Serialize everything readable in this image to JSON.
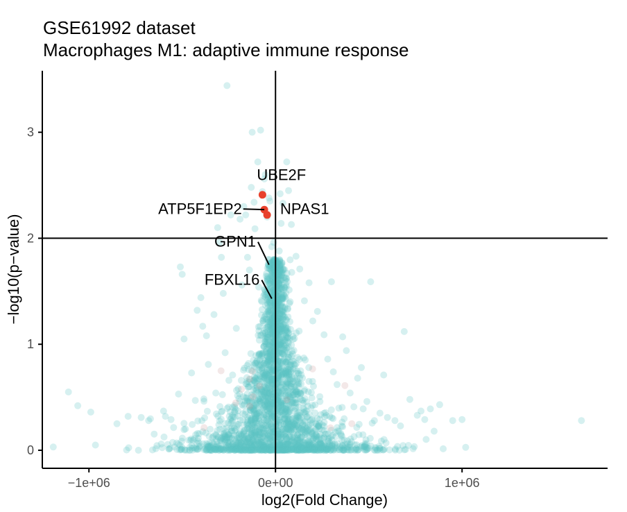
{
  "chart_data": {
    "type": "scatter",
    "title": "GSE61992 dataset",
    "subtitle": "Macrophages M1: adaptive immune response",
    "xlabel": "log2(Fold Change)",
    "ylabel": "−log10(p−value)",
    "xlim": [
      -1250000,
      1780000
    ],
    "ylim": [
      -0.17,
      3.58
    ],
    "x_ticks": [
      {
        "value": -1000000,
        "label": "−1e+06"
      },
      {
        "value": 0,
        "label": "0e+00"
      },
      {
        "value": 1000000,
        "label": "1e+06"
      }
    ],
    "y_ticks": [
      {
        "value": 0,
        "label": "0"
      },
      {
        "value": 1,
        "label": "1"
      },
      {
        "value": 2,
        "label": "2"
      },
      {
        "value": 3,
        "label": "3"
      }
    ],
    "threshold_x": 0,
    "threshold_y": 2,
    "grid": false,
    "legend": "none",
    "colors": {
      "background_points": "#5bc4c4",
      "significant_points": "#e8412c",
      "axis": "#000000"
    },
    "sparse_points": [
      [
        -1110000,
        0.55
      ],
      [
        -1060000,
        0.42
      ],
      [
        -990000,
        0.36
      ],
      [
        -790000,
        0.32
      ],
      [
        -720000,
        0.31
      ],
      [
        -680000,
        0.28
      ],
      [
        -600000,
        0.37
      ],
      [
        -590000,
        0.32
      ],
      [
        -560000,
        0.29
      ],
      [
        -520000,
        0.53
      ],
      [
        -510000,
        1.73
      ],
      [
        -500000,
        1.66
      ],
      [
        -490000,
        1.05
      ],
      [
        -450000,
        0.73
      ],
      [
        -420000,
        1.32
      ],
      [
        -400000,
        1.44
      ],
      [
        -390000,
        1.17
      ],
      [
        -370000,
        1.08
      ],
      [
        -330000,
        1.28
      ],
      [
        -310000,
        2.1
      ],
      [
        -300000,
        1.96
      ],
      [
        -290000,
        1.82
      ],
      [
        -280000,
        1.48
      ],
      [
        -270000,
        0.92
      ],
      [
        -250000,
        0.66
      ],
      [
        -240000,
        2.22
      ],
      [
        -230000,
        0.71
      ],
      [
        -210000,
        1.15
      ],
      [
        -200000,
        0.58
      ],
      [
        -180000,
        0.43
      ],
      [
        -260000,
        3.44
      ],
      [
        -190000,
        2.18
      ],
      [
        -180000,
        1.56
      ],
      [
        -170000,
        2.3
      ],
      [
        -160000,
        2.22
      ],
      [
        -150000,
        1.82
      ],
      [
        -140000,
        1.7
      ],
      [
        -130000,
        2.48
      ],
      [
        -125000,
        3.0
      ],
      [
        -115000,
        2.34
      ],
      [
        -110000,
        2.09
      ],
      [
        -95000,
        2.72
      ],
      [
        -90000,
        1.54
      ],
      [
        -80000,
        3.02
      ],
      [
        -70000,
        2.44
      ],
      [
        -60000,
        2.56
      ],
      [
        -55000,
        2.6
      ],
      [
        -45000,
        2.2
      ],
      [
        -35000,
        2.38
      ],
      [
        -30000,
        2.35
      ],
      [
        -20000,
        1.92
      ],
      [
        -10000,
        1.96
      ],
      [
        20000,
        1.88
      ],
      [
        25000,
        2.42
      ],
      [
        30000,
        2.14
      ],
      [
        40000,
        2.33
      ],
      [
        60000,
        2.72
      ],
      [
        70000,
        2.45
      ],
      [
        85000,
        2.13
      ],
      [
        110000,
        1.83
      ],
      [
        130000,
        1.71
      ],
      [
        155000,
        1.41
      ],
      [
        180000,
        1.58
      ],
      [
        200000,
        1.22
      ],
      [
        225000,
        1.31
      ],
      [
        260000,
        1.09
      ],
      [
        280000,
        0.86
      ],
      [
        300000,
        1.59
      ],
      [
        310000,
        0.74
      ],
      [
        330000,
        0.62
      ],
      [
        360000,
        1.07
      ],
      [
        380000,
        0.94
      ],
      [
        400000,
        0.54
      ],
      [
        440000,
        0.68
      ],
      [
        470000,
        0.39
      ],
      [
        490000,
        0.46
      ],
      [
        510000,
        1.59
      ],
      [
        530000,
        0.28
      ],
      [
        560000,
        0.35
      ],
      [
        580000,
        0.71
      ],
      [
        600000,
        0.31
      ],
      [
        640000,
        0.28
      ],
      [
        670000,
        0.23
      ],
      [
        690000,
        1.12
      ],
      [
        720000,
        0.48
      ],
      [
        760000,
        0.33
      ],
      [
        780000,
        0.37
      ],
      [
        800000,
        0.29
      ],
      [
        830000,
        0.39
      ],
      [
        850000,
        0.18
      ],
      [
        880000,
        0.43
      ],
      [
        950000,
        0.28
      ],
      [
        1000000,
        0.29
      ],
      [
        1640000,
        0.28
      ],
      [
        -850000,
        0.25
      ],
      [
        -430000,
        0.47
      ],
      [
        -360000,
        0.81
      ],
      [
        -320000,
        0.54
      ],
      [
        420000,
        0.41
      ],
      [
        460000,
        0.78
      ]
    ],
    "cluster": {
      "count": 2600,
      "seed": 20240611,
      "x_center": 0,
      "y_max": 1.8,
      "note_points": "dense volcano cloud around log2FC = 0"
    },
    "highlighted": [
      {
        "gene": "UBE2F",
        "x": -70000,
        "y": 2.41
      },
      {
        "gene": "ATP5F1EP2",
        "x": -60000,
        "y": 2.27
      },
      {
        "gene": "NPAS1",
        "x": -45000,
        "y": 2.22
      }
    ],
    "labels": [
      {
        "gene": "UBE2F",
        "text": "UBE2F",
        "point_x": -70000,
        "point_y": 2.41,
        "label_x": -100000,
        "label_y": 2.55,
        "anchor": "start",
        "connector": false
      },
      {
        "gene": "ATP5F1EP2",
        "text": "ATP5F1EP2",
        "point_x": -60000,
        "point_y": 2.27,
        "label_x": -180000,
        "label_y": 2.23,
        "anchor": "end",
        "connector": true
      },
      {
        "gene": "NPAS1",
        "text": "NPAS1",
        "point_x": -45000,
        "point_y": 2.22,
        "label_x": 25000,
        "label_y": 2.23,
        "anchor": "start",
        "connector": false
      },
      {
        "gene": "GPN1",
        "text": "GPN1",
        "point_x": -35000,
        "point_y": 1.75,
        "label_x": -105000,
        "label_y": 1.92,
        "anchor": "end",
        "connector": true
      },
      {
        "gene": "FBXL16",
        "text": "FBXL16",
        "point_x": -20000,
        "point_y": 1.43,
        "label_x": -85000,
        "label_y": 1.56,
        "anchor": "end",
        "connector": true
      }
    ]
  }
}
